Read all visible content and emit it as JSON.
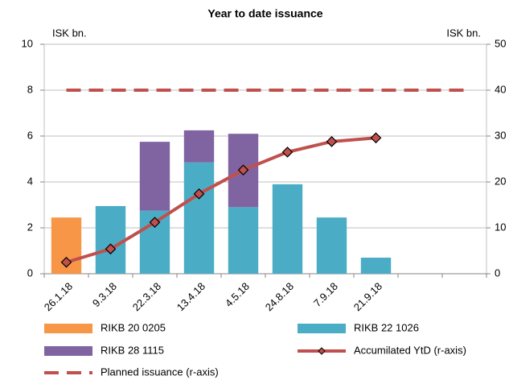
{
  "chart_data": {
    "type": "bar",
    "title": "Year to date issuance",
    "y_unit_label": "ISK bn.",
    "y2_unit_label": "ISK bn.",
    "categories": [
      "26.1.18",
      "9.3.18",
      "22.3.18",
      "13.4.18",
      "4.5.18",
      "24.8.18",
      "7.9.18",
      "21.9.18",
      null,
      null
    ],
    "ylim": [
      0,
      10
    ],
    "yticks": [
      0,
      2,
      4,
      6,
      8,
      10
    ],
    "y2lim": [
      0,
      50
    ],
    "y2ticks": [
      0,
      10,
      20,
      30,
      40,
      50
    ],
    "stacked": true,
    "series": [
      {
        "name": "RIKB 20 0205",
        "type": "bar",
        "color": "#f79646",
        "values": [
          2.45,
          null,
          null,
          null,
          null,
          null,
          null,
          null,
          null,
          null
        ]
      },
      {
        "name": "RIKB 22 1026",
        "type": "bar",
        "color": "#4bacc6",
        "values": [
          null,
          2.95,
          2.75,
          4.85,
          2.9,
          3.9,
          2.45,
          0.7,
          null,
          null
        ]
      },
      {
        "name": "RIKB 28 1115",
        "type": "bar",
        "color": "#8064a2",
        "values": [
          null,
          null,
          3.0,
          1.4,
          3.2,
          null,
          null,
          null,
          null,
          null
        ]
      },
      {
        "name": "Accumilated YtD (r-axis)",
        "type": "line",
        "axis": "y2",
        "color": "#c0504d",
        "marker": "diamond",
        "values": [
          2.5,
          5.4,
          11.2,
          17.4,
          22.6,
          26.5,
          28.8,
          29.6,
          null,
          null
        ]
      },
      {
        "name": "Planned issuance (r-axis)",
        "type": "line",
        "axis": "y2",
        "color": "#c0504d",
        "dashed": true,
        "values": [
          40,
          40,
          40,
          40,
          40,
          40,
          40,
          40,
          40,
          40
        ]
      }
    ]
  }
}
